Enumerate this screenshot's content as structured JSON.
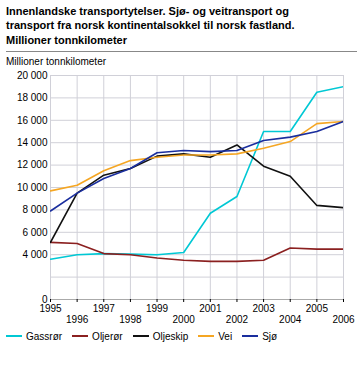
{
  "chart_data": {
    "type": "line",
    "title": "Innenlandske transportytelser. Sjø- og veitransport og\ntransport fra norsk kontinentalsokkel til norsk fastland.\nMillioner tonnkilometer",
    "y_label": "Millioner tonnkilometer",
    "x": [
      1995,
      1996,
      1997,
      1998,
      1999,
      2000,
      2001,
      2002,
      2003,
      2004,
      2005,
      2006
    ],
    "series": [
      {
        "name": "Gassrør",
        "color": "#00c8d4",
        "values": [
          3600,
          4000,
          4100,
          4050,
          4000,
          4200,
          7700,
          9200,
          15000,
          15000,
          18500,
          19000
        ]
      },
      {
        "name": "Oljerør",
        "color": "#8b2020",
        "values": [
          5100,
          5000,
          4100,
          4000,
          3700,
          3500,
          3400,
          3400,
          3500,
          4600,
          4500,
          4500
        ]
      },
      {
        "name": "Oljeskip",
        "color": "#111111",
        "values": [
          5100,
          9500,
          11100,
          11700,
          12800,
          13000,
          12700,
          13800,
          11900,
          11000,
          8400,
          8200
        ]
      },
      {
        "name": "Vei",
        "color": "#f5a623",
        "values": [
          9700,
          10200,
          11500,
          12400,
          12700,
          12900,
          12900,
          13000,
          13500,
          14100,
          15700,
          15900
        ]
      },
      {
        "name": "Sjø",
        "color": "#1a2e9e",
        "values": [
          7900,
          9500,
          10800,
          11700,
          13100,
          13300,
          13200,
          13300,
          14200,
          14500,
          15000,
          15900
        ]
      }
    ],
    "xlim": [
      1995,
      2006
    ],
    "xticks": [
      1995,
      1996,
      1997,
      1998,
      1999,
      2000,
      2001,
      2002,
      2003,
      2004,
      2005,
      2006
    ],
    "ylim": [
      0,
      20000
    ],
    "yticks": [
      0,
      {
        "value": 2000,
        "label": ""
      },
      {
        "value": 4000,
        "label": "4 000"
      },
      {
        "value": 6000,
        "label": "6 000"
      },
      {
        "value": 8000,
        "label": "8 000"
      },
      {
        "value": 10000,
        "label": "10 000"
      },
      {
        "value": 12000,
        "label": "12 000"
      },
      {
        "value": 14000,
        "label": "14 000"
      },
      {
        "value": 16000,
        "label": "16 000"
      },
      {
        "value": 18000,
        "label": "18 000"
      },
      {
        "value": 20000,
        "label": "20 000"
      }
    ],
    "grid": true,
    "legend": "bottom"
  }
}
